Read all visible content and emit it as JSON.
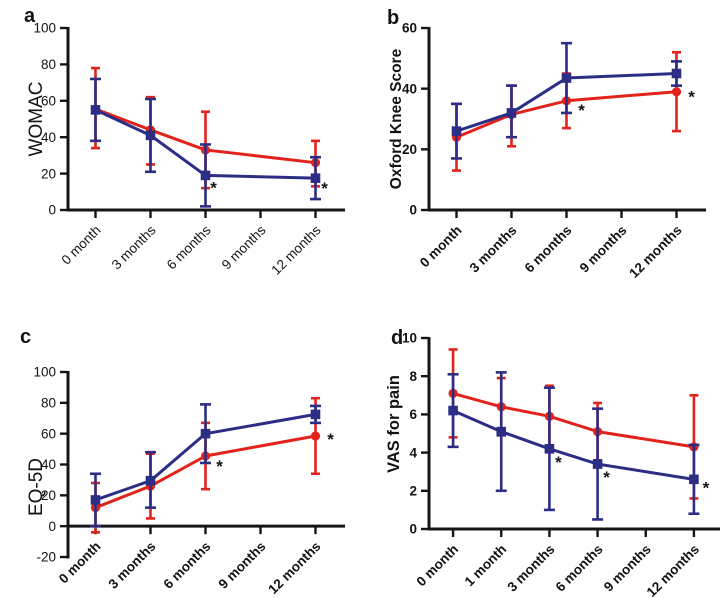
{
  "figure": {
    "description": "Four-panel clinical outcome line charts with error bars",
    "colors": {
      "red": "#e2231c",
      "blue": "#2c2e86",
      "axis": "#151515",
      "asterisk": "#111111"
    },
    "significance_symbol": "*"
  },
  "chart_data": [
    {
      "type": "line",
      "panel_label": "a",
      "ylabel": "WOMAC",
      "ylim": [
        0,
        100
      ],
      "yticks": [
        0,
        20,
        40,
        60,
        80,
        100
      ],
      "x_axis_at": 0,
      "categories": [
        "0 month",
        "3 months",
        "6 months",
        "9 months",
        "12 months"
      ],
      "data_tick_indices": [
        0,
        1,
        2,
        4
      ],
      "series": [
        {
          "name": "red-circles",
          "color": "red",
          "marker": "circle",
          "values": [
            55.5,
            44,
            33,
            26
          ],
          "err_low": [
            34,
            25,
            12,
            13
          ],
          "err_high": [
            78,
            62,
            54,
            38
          ]
        },
        {
          "name": "blue-squares",
          "color": "blue",
          "marker": "square",
          "values": [
            55,
            41,
            19,
            17.5
          ],
          "err_low": [
            38,
            21,
            2,
            6
          ],
          "err_high": [
            72,
            61,
            36,
            29
          ]
        }
      ],
      "significance": [
        {
          "series_index": 1,
          "point_index": 2,
          "label": "*"
        },
        {
          "series_index": 1,
          "point_index": 3,
          "label": "*"
        }
      ]
    },
    {
      "type": "line",
      "panel_label": "b",
      "ylabel": "Oxford Knee Score",
      "ylim": [
        0,
        60
      ],
      "yticks": [
        0,
        20,
        40,
        60
      ],
      "x_axis_at": 0,
      "categories": [
        "0 month",
        "3 months",
        "6 months",
        "9 months",
        "12 months"
      ],
      "data_tick_indices": [
        0,
        1,
        2,
        4
      ],
      "series": [
        {
          "name": "red-circles",
          "color": "red",
          "marker": "circle",
          "values": [
            24,
            31.5,
            36,
            39
          ],
          "err_low": [
            13,
            21,
            27,
            26
          ],
          "err_high": [
            35,
            41,
            45,
            52
          ]
        },
        {
          "name": "blue-squares",
          "color": "blue",
          "marker": "square",
          "values": [
            26,
            32,
            43.5,
            45
          ],
          "err_low": [
            17,
            24,
            32,
            41
          ],
          "err_high": [
            35,
            41,
            55,
            49
          ]
        }
      ],
      "significance": [
        {
          "series_index": 0,
          "point_index": 2,
          "label": "*"
        },
        {
          "series_index": 0,
          "point_index": 3,
          "label": "*"
        }
      ]
    },
    {
      "type": "line",
      "panel_label": "c",
      "ylabel": "EQ-5D",
      "ylim": [
        -20,
        100
      ],
      "yticks": [
        -20,
        0,
        20,
        40,
        60,
        80,
        100
      ],
      "x_axis_at": 0,
      "categories": [
        "0 month",
        "3 months",
        "6 months",
        "9 months",
        "12 months"
      ],
      "data_tick_indices": [
        0,
        1,
        2,
        4
      ],
      "series": [
        {
          "name": "red-circles",
          "color": "red",
          "marker": "circle",
          "values": [
            12,
            26,
            45.5,
            58.5
          ],
          "err_low": [
            -4,
            5,
            24,
            34
          ],
          "err_high": [
            28,
            47,
            67,
            83
          ]
        },
        {
          "name": "blue-squares",
          "color": "blue",
          "marker": "square",
          "values": [
            17,
            29.5,
            60,
            72.5
          ],
          "err_low": [
            0,
            12,
            41,
            67
          ],
          "err_high": [
            34,
            48,
            79,
            78
          ]
        }
      ],
      "significance": [
        {
          "series_index": 0,
          "point_index": 2,
          "label": "*"
        },
        {
          "series_index": 0,
          "point_index": 3,
          "label": "*"
        }
      ]
    },
    {
      "type": "line",
      "panel_label": "d",
      "ylabel": "VAS for pain",
      "ylim": [
        0,
        10
      ],
      "yticks": [
        0,
        2,
        4,
        6,
        8,
        10
      ],
      "x_axis_at": 0,
      "categories": [
        "0 month",
        "1 month",
        "3 months",
        "6 months",
        "9 months",
        "12 months"
      ],
      "data_tick_indices": [
        0,
        1,
        2,
        3,
        5
      ],
      "series": [
        {
          "name": "red-circles",
          "color": "red",
          "marker": "circle",
          "values": [
            7.1,
            6.4,
            5.9,
            5.1,
            4.3
          ],
          "err_low": [
            4.8,
            4.9,
            4.3,
            3.6,
            1.6
          ],
          "err_high": [
            9.4,
            7.9,
            7.5,
            6.6,
            7.0
          ]
        },
        {
          "name": "blue-squares",
          "color": "blue",
          "marker": "square",
          "values": [
            6.2,
            5.1,
            4.2,
            3.4,
            2.6
          ],
          "err_low": [
            4.3,
            2.0,
            1.0,
            0.5,
            0.8
          ],
          "err_high": [
            8.1,
            8.2,
            7.4,
            6.3,
            4.4
          ]
        }
      ],
      "significance": [
        {
          "series_index": 1,
          "point_index": 2,
          "label": "*"
        },
        {
          "series_index": 1,
          "point_index": 3,
          "label": "*"
        },
        {
          "series_index": 1,
          "point_index": 4,
          "label": "*"
        }
      ]
    }
  ]
}
